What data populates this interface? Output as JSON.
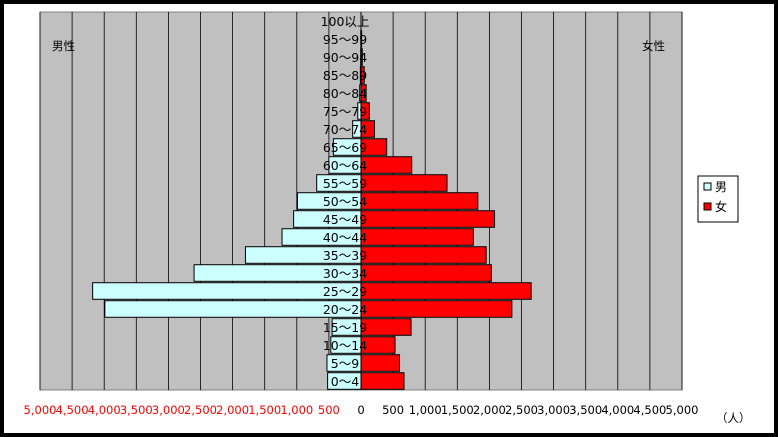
{
  "chart_data": {
    "type": "bar",
    "orientation": "horizontal",
    "layout": "population-pyramid",
    "left_label": "男性",
    "right_label": "女性",
    "unit_label": "（人）",
    "categories": [
      "0～4",
      "5～9",
      "10～14",
      "15～19",
      "20～24",
      "25～29",
      "30～34",
      "35～39",
      "40～44",
      "45～49",
      "50～54",
      "55～59",
      "60～64",
      "65～69",
      "70～74",
      "75～79",
      "80～84",
      "85～89",
      "90～94",
      "95～99",
      "100以上"
    ],
    "series": [
      {
        "name": "男",
        "color": "#ccffff",
        "values": [
          520,
          530,
          470,
          450,
          3990,
          4180,
          2600,
          1800,
          1230,
          1050,
          990,
          690,
          500,
          430,
          130,
          50,
          20,
          10,
          5,
          3,
          0
        ]
      },
      {
        "name": "女",
        "color": "#ff0000",
        "values": [
          670,
          600,
          530,
          780,
          2350,
          2650,
          2030,
          1950,
          1750,
          2080,
          1820,
          1340,
          790,
          400,
          210,
          130,
          80,
          50,
          20,
          10,
          0
        ]
      }
    ],
    "xlim": [
      -5000,
      5000
    ],
    "x_ticks_left": [
      "5,000",
      "4,500",
      "4,000",
      "3,500",
      "3,000",
      "2,500",
      "2,000",
      "1,500",
      "1,000",
      "500"
    ],
    "x_ticks_right": [
      "0",
      "500",
      "1,000",
      "1,500",
      "2,000",
      "2,500",
      "3,000",
      "3,500",
      "4,000",
      "4,500",
      "5,000"
    ],
    "left_tick_color": "#ff0000",
    "plot_background": "#c0c0c0",
    "grid": true,
    "legend_position": "right"
  }
}
